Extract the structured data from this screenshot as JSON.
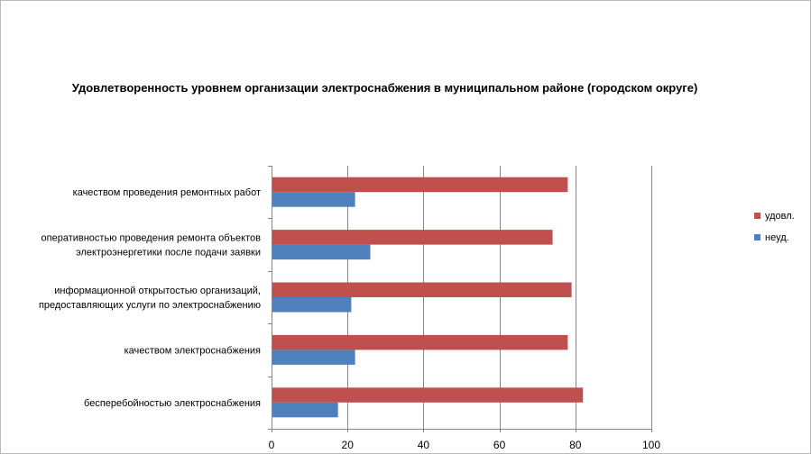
{
  "chart_data": {
    "type": "bar",
    "orientation": "horizontal",
    "title": "Удовлетворенность уровнем организации электроснабжения в муниципальном районе (городском округе)",
    "categories": [
      [
        "качеством  проведения  ремонтных  работ"
      ],
      [
        "оперативностью  проведения  ремонта  объектов",
        "электроэнергетики  после  подачи  заявки"
      ],
      [
        "информационной  открытостью  организаций,",
        "предоставляющих  услуги  по  электроснабжению"
      ],
      [
        "качеством  электроснабжения"
      ],
      [
        "бесперебойностью  электроснабжения"
      ]
    ],
    "series": [
      {
        "name": "удовл.",
        "color": "#c0504d",
        "values": [
          78,
          74,
          79,
          78,
          82
        ]
      },
      {
        "name": "неуд.",
        "color": "#4f81bd",
        "values": [
          22,
          26,
          21,
          22,
          17.5
        ]
      }
    ],
    "xlim": [
      0,
      100
    ],
    "xticks": [
      0,
      20,
      40,
      60,
      80,
      100
    ],
    "grid": true,
    "legend": "right"
  }
}
